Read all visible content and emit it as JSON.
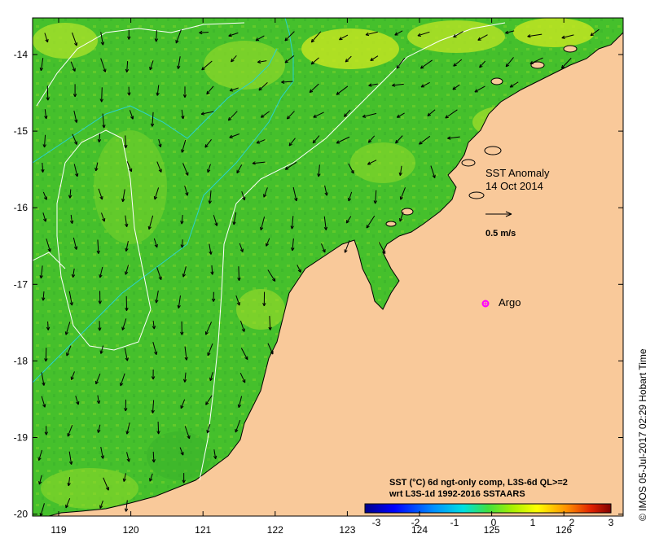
{
  "map": {
    "title_line1": "SST Anomaly",
    "title_line2": "14 Oct 2014",
    "scale_arrow_label": "0.5 m/s",
    "argo_label": "Argo",
    "colorbar_title_line1": "SST (°C) 6d ngt-only comp, L3S-6d QL>=2",
    "colorbar_title_line2": "wrt L3S-1d 1992-2016 SSTAARS",
    "credit": "©  IMOS 05-Jul-2017 02:29 Hobart Time",
    "lon_ticks": [
      "119",
      "120",
      "121",
      "122",
      "123",
      "124",
      "125",
      "126"
    ],
    "lat_ticks": [
      "-14",
      "-15",
      "-16",
      "-17",
      "-18",
      "-19",
      "-20"
    ],
    "colorbar_ticks": [
      "-3",
      "-2",
      "-1",
      "0",
      "1",
      "2",
      "3"
    ],
    "colors": {
      "land": "#f9c99a",
      "sea_base": "#45c02c",
      "sea_light": "#8fd82a",
      "sea_yellow": "#c8e622",
      "contour": "#ffffff",
      "bathymetry": "#28d2d2",
      "argo_marker": "#ff00ff"
    },
    "colorbar_colors": [
      "#00008b",
      "#0000ff",
      "#0080ff",
      "#00d0ff",
      "#40ff40",
      "#a0ff00",
      "#ffff00",
      "#ffa000",
      "#ff3000",
      "#8b0000"
    ]
  }
}
